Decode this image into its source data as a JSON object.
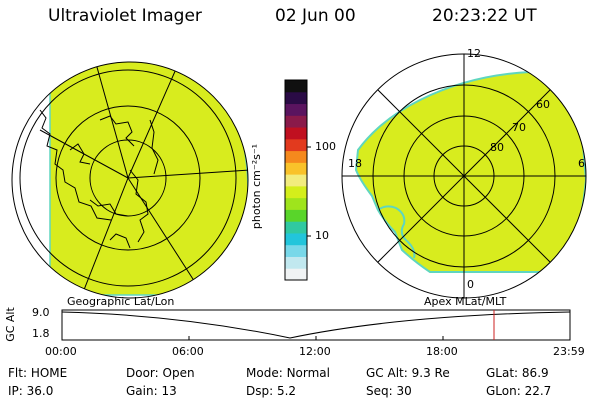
{
  "header": {
    "title": "Ultraviolet Imager",
    "date": "02 Jun 00",
    "time": "20:23:22 UT"
  },
  "colorbar": {
    "label": "photon cm⁻²s⁻¹",
    "ticks": [
      "100",
      "10"
    ],
    "colors": [
      "#101010",
      "#2a0b45",
      "#5a145f",
      "#8a1a4a",
      "#c01020",
      "#e23a1e",
      "#f5891d",
      "#f9c22a",
      "#f2ec7e",
      "#d4ee1b",
      "#9fe41c",
      "#59d52a",
      "#30c9a1",
      "#22c5db",
      "#78d8e9",
      "#c1e8ef",
      "#f0f3f4"
    ]
  },
  "left_panel": {
    "caption": "Geographic Lat/Lon"
  },
  "right_panel": {
    "caption": "Apex MLat/MLT",
    "mlt_labels": {
      "top": "12",
      "left": "18",
      "right": "6",
      "bottom": "0"
    },
    "lat_labels": [
      "60",
      "70",
      "80"
    ]
  },
  "altitude_plot": {
    "ylabel": "GC Alt",
    "yticks": [
      "9.0",
      "1.8"
    ],
    "xticks": [
      "00:00",
      "06:00",
      "12:00",
      "18:00",
      "23:59"
    ],
    "marker_time": "20:23"
  },
  "status": {
    "flt_label": "Flt:",
    "flt": "HOME",
    "ip_label": "IP:",
    "ip": "36.0",
    "door_label": "Door:",
    "door": "Open",
    "gain_label": "Gain:",
    "gain": "13",
    "mode_label": "Mode:",
    "mode": "Normal",
    "dsp_label": "Dsp:",
    "dsp": "5.2",
    "gcalt_label": "GC Alt:",
    "gcalt": "9.3 Re",
    "seq_label": "Seq:",
    "seq": "30",
    "glat_label": "GLat:",
    "glat": "86.9",
    "glon_label": "GLon:",
    "glon": "22.7"
  },
  "colors": {
    "aurora_fill": "#d8ec1e",
    "aurora_edge": "#5fd6c0",
    "marker": "#cc2222"
  }
}
